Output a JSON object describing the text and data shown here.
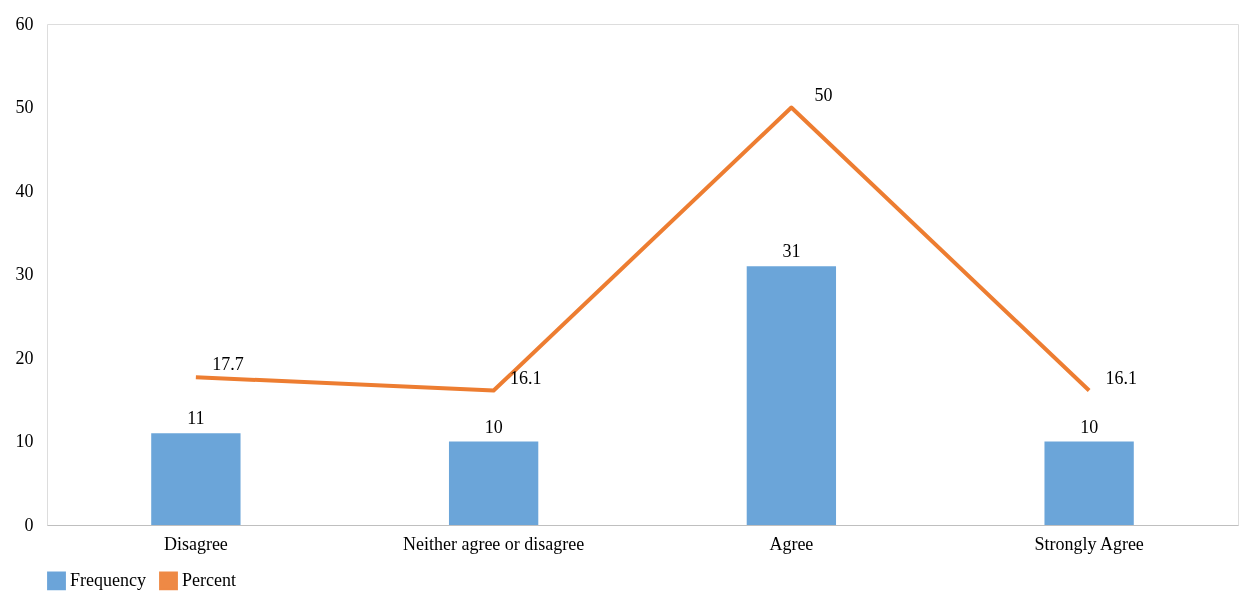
{
  "chart_data": {
    "type": "bar",
    "categories": [
      "Disagree",
      "Neither agree or disagree",
      "Agree",
      "Strongly Agree"
    ],
    "series": [
      {
        "name": "Frequency",
        "color": "#5b9bd5",
        "values": [
          11,
          10,
          31,
          10
        ]
      },
      {
        "name": "Percent",
        "type": "line",
        "color": "#ed7d31",
        "values": [
          17.7,
          16.1,
          50,
          16.1
        ]
      }
    ],
    "ylim": [
      0,
      60
    ],
    "yticks": [
      0,
      10,
      20,
      30,
      40,
      50,
      60
    ],
    "grid": false,
    "legend": "bottom",
    "data_labels": true,
    "marker": "none"
  }
}
